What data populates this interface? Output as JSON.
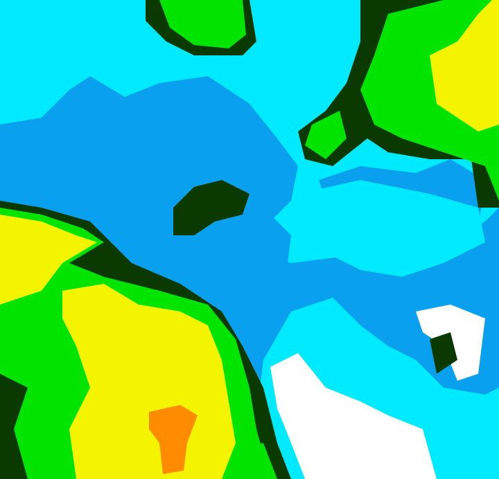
{
  "map": {
    "type": "color-classified raster",
    "palette": {
      "background": "#00eaff",
      "low": "#0aa0f0",
      "none": "#ffffff",
      "dark_green": "#0a3a00",
      "green": "#00e400",
      "yellow": "#f4f400",
      "orange": "#ff8c00"
    }
  }
}
